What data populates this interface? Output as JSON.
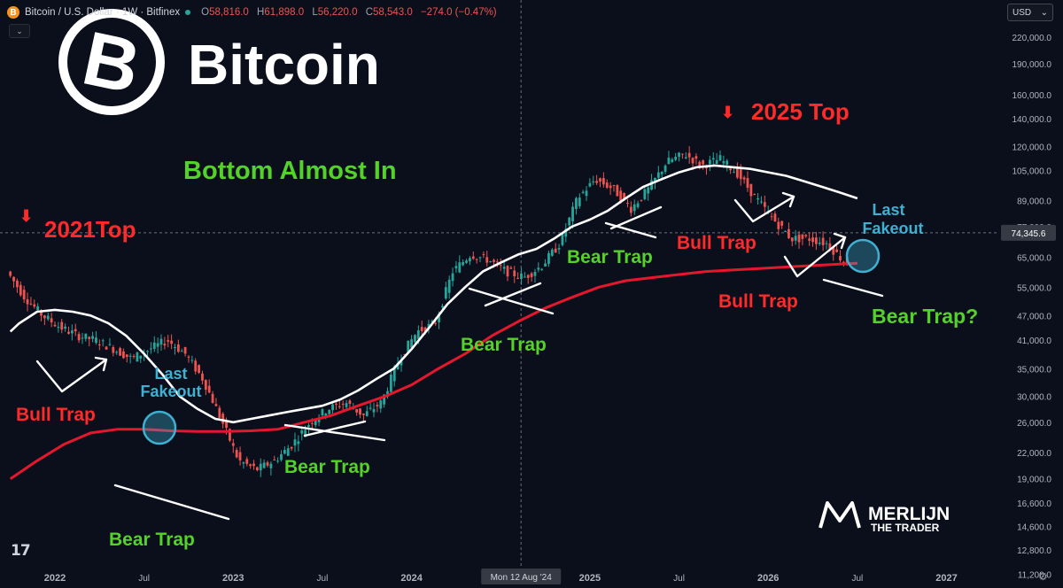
{
  "header": {
    "coin_glyph": "B",
    "symbol": "Bitcoin / U.S. Dollar · 1W · Bitfinex",
    "ohlc": {
      "o_label": "O",
      "o": "58,816.0",
      "h_label": "H",
      "h": "61,898.0",
      "l_label": "L",
      "l": "56,220.0",
      "c_label": "C",
      "c": "58,543.0",
      "change": "−274.0 (−0.47%)"
    }
  },
  "currency_selector": {
    "label": "USD",
    "caret": "⌄"
  },
  "collapse_glyph": "⌄",
  "logo": {
    "word": "Bitcoin",
    "glyph": "B"
  },
  "brand": {
    "name": "MERLIJN",
    "tagline": "THE TRADER"
  },
  "tv_mark": "17",
  "settings_glyph": "⚙",
  "colors": {
    "background": "#0b0f1c",
    "bull": "#26a69a",
    "bear": "#ef5350",
    "ma200": "#e5172d",
    "ma_white": "#ffffff",
    "annot_red": "#ff2a2a",
    "annot_green": "#54d22a",
    "annot_cyan": "#3eb1d2"
  },
  "chart_data": {
    "type": "line",
    "scale": "log",
    "ylim": [
      11200,
      230000
    ],
    "y_ticks": [
      "220,000.0",
      "190,000.0",
      "160,000.0",
      "140,000.0",
      "120,000.0",
      "105,000.0",
      "89,000.0",
      "77,000.0",
      "65,000.0",
      "55,000.0",
      "47,000.0",
      "41,000.0",
      "35,000.0",
      "30,000.0",
      "26,000.0",
      "22,000.0",
      "19,000.0",
      "16,600.0",
      "14,600.0",
      "12,800.0",
      "11,200.0"
    ],
    "x_ticks": [
      "2022",
      "Jul",
      "2023",
      "Jul",
      "2024",
      "Jul",
      "2025",
      "Jul",
      "2026",
      "Jul",
      "2027"
    ],
    "crosshair": {
      "x_label": "Mon 12 Aug '24",
      "y_label": "74,345.6",
      "y_value": 74345.6
    },
    "series": [
      {
        "x": [
          2021.75,
          2021.85,
          2021.95,
          2022.05,
          2022.15,
          2022.25,
          2022.35,
          2022.45,
          2022.55,
          2022.65,
          2022.75,
          2022.85,
          2022.95,
          2023.05,
          2023.15,
          2023.25,
          2023.35,
          2023.45,
          2023.55,
          2023.65,
          2023.75,
          2023.85,
          2023.95,
          2024.05,
          2024.15,
          2024.25,
          2024.35,
          2024.45,
          2024.55,
          2024.65,
          2024.75,
          2024.85,
          2024.95,
          2025.05,
          2025.15,
          2025.25,
          2025.35,
          2025.45,
          2025.55,
          2025.65,
          2025.75,
          2025.85,
          2025.95,
          2026.05,
          2026.15,
          2026.25,
          2026.35,
          2026.45
        ],
        "values": [
          60000,
          52000,
          47000,
          44000,
          42000,
          41000,
          39000,
          37000,
          39000,
          41000,
          38000,
          33000,
          26500,
          21000,
          20000,
          21000,
          23000,
          26000,
          28000,
          29000,
          27000,
          29000,
          37000,
          43000,
          45000,
          60000,
          66000,
          64000,
          60000,
          58000,
          62000,
          70000,
          90000,
          100000,
          95000,
          85000,
          95000,
          110000,
          115000,
          108000,
          112000,
          103000,
          90000,
          80000,
          72000,
          72000,
          70000,
          63000
        ]
      },
      {
        "x": [
          2021.75,
          2021.9,
          2022.05,
          2022.2,
          2022.35,
          2022.5,
          2022.65,
          2022.8,
          2022.95,
          2023.1,
          2023.25,
          2023.4,
          2023.55,
          2023.7,
          2023.85,
          2024.0,
          2024.15,
          2024.3,
          2024.45,
          2024.6,
          2024.75,
          2024.9,
          2025.05,
          2025.2,
          2025.35,
          2025.5,
          2025.65,
          2025.8,
          2025.95,
          2026.1,
          2026.25,
          2026.4,
          2026.5
        ],
        "values": [
          19000,
          21000,
          23000,
          24500,
          25000,
          25000,
          24800,
          24700,
          24700,
          24800,
          25000,
          26000,
          27000,
          28500,
          30000,
          32000,
          35000,
          38000,
          42000,
          45500,
          49000,
          52000,
          55000,
          57000,
          58000,
          59000,
          60000,
          60500,
          61000,
          61500,
          62000,
          62500,
          62800
        ]
      },
      {
        "x": [
          2021.75,
          2021.8,
          2021.9,
          2022.0,
          2022.1,
          2022.2,
          2022.3,
          2022.4,
          2022.5,
          2022.6,
          2022.7,
          2022.8,
          2022.9,
          2023.0,
          2023.1,
          2023.2,
          2023.3,
          2023.4,
          2023.5,
          2023.6,
          2023.7,
          2023.8,
          2023.9,
          2024.0,
          2024.1,
          2024.2,
          2024.3,
          2024.4,
          2024.5,
          2024.6,
          2024.7,
          2024.8,
          2024.9,
          2025.0,
          2025.1,
          2025.2,
          2025.3,
          2025.4,
          2025.5,
          2025.6,
          2025.7,
          2025.8,
          2025.9,
          2026.0,
          2026.1,
          2026.2,
          2026.3,
          2026.4,
          2026.5
        ],
        "values": [
          43000,
          45000,
          48000,
          48500,
          48000,
          47000,
          45000,
          42000,
          38000,
          34000,
          30000,
          28000,
          26500,
          26000,
          26500,
          27000,
          27500,
          28000,
          28500,
          29500,
          31000,
          33000,
          35000,
          39000,
          44000,
          50000,
          55000,
          60000,
          63000,
          66000,
          68000,
          72000,
          77000,
          80000,
          84000,
          90000,
          96000,
          100000,
          104000,
          107000,
          108000,
          107000,
          106000,
          104000,
          102000,
          99000,
          96000,
          93000,
          90000
        ]
      }
    ]
  },
  "annotations": {
    "top_2021": "2021Top",
    "top_2025": "2025 Top",
    "headline": "Bottom Almost In",
    "bull_trap": "Bull Trap",
    "bear_trap": "Bear Trap",
    "bear_trap_q": "Bear Trap?",
    "last": "Last",
    "fakeout": "Fakeout",
    "arrow_glyph": "⬇"
  }
}
